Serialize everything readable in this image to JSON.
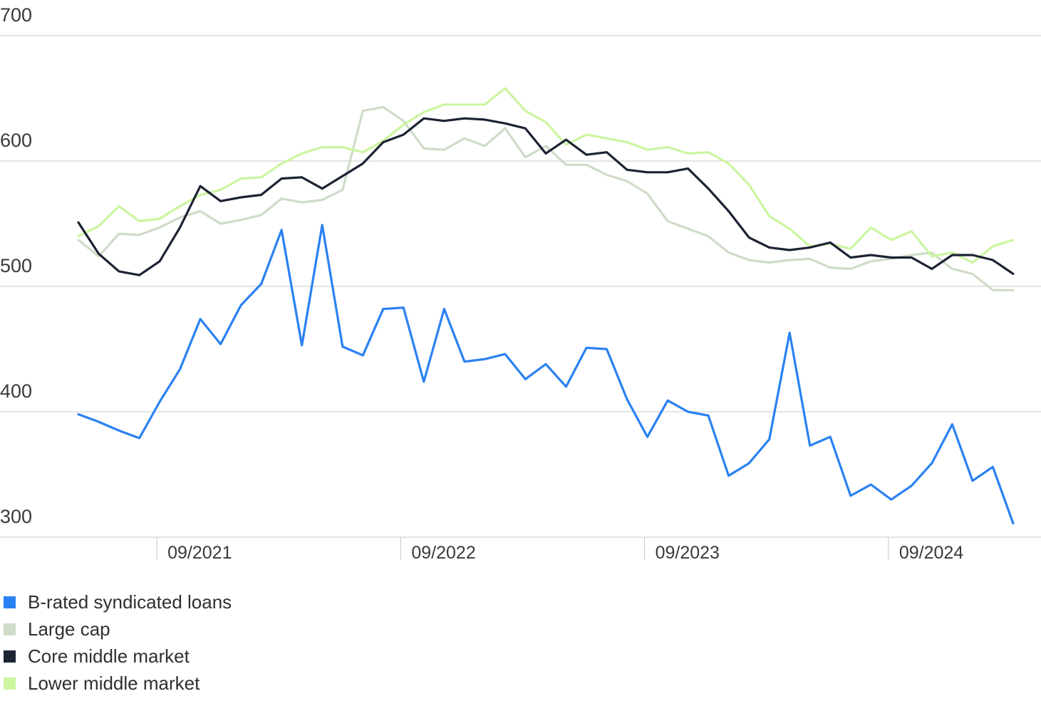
{
  "chart_data": {
    "type": "line",
    "title": "",
    "xlabel": "",
    "ylabel": "",
    "ylim": [
      300,
      700
    ],
    "yticks": [
      700,
      600,
      500,
      400,
      300
    ],
    "x_tick_labels": [
      "09/2021",
      "09/2022",
      "09/2023",
      "09/2024"
    ],
    "x_tick_positions": [
      6,
      18,
      30,
      42
    ],
    "grid": true,
    "legend_position": "bottom-left",
    "series": [
      {
        "name": "B-rated syndicated loans",
        "color": "#2a81f2",
        "values": [
          398,
          392,
          385,
          379,
          408,
          434,
          474,
          454,
          485,
          502,
          545,
          453,
          549,
          452,
          445,
          482,
          483,
          424,
          482,
          440,
          442,
          446,
          426,
          438,
          420,
          451,
          450,
          410,
          380,
          409,
          400,
          397,
          349,
          359,
          378,
          463,
          373,
          380,
          333,
          342,
          330,
          341,
          359,
          390,
          345,
          356,
          311
        ]
      },
      {
        "name": "Large cap",
        "color": "#cfdcc8",
        "values": [
          537,
          524,
          542,
          541,
          547,
          555,
          560,
          550,
          553,
          557,
          570,
          567,
          569,
          577,
          640,
          643,
          632,
          610,
          609,
          618,
          612,
          626,
          603,
          612,
          597,
          597,
          589,
          584,
          574,
          552,
          546,
          540,
          527,
          521,
          519,
          521,
          522,
          515,
          514,
          520,
          522,
          525,
          527,
          514,
          510,
          497,
          497
        ]
      },
      {
        "name": "Core middle market",
        "color": "#1c2333",
        "values": [
          551,
          526,
          512,
          509,
          520,
          547,
          580,
          568,
          571,
          573,
          586,
          587,
          578,
          588,
          598,
          615,
          621,
          634,
          632,
          634,
          633,
          630,
          626,
          606,
          617,
          605,
          607,
          593,
          591,
          591,
          594,
          578,
          560,
          539,
          531,
          529,
          531,
          535,
          523,
          525,
          523,
          523,
          514,
          525,
          525,
          521,
          510
        ]
      },
      {
        "name": "Lower middle market",
        "color": "#ccf5a0",
        "values": [
          540,
          548,
          564,
          552,
          554,
          564,
          573,
          577,
          586,
          587,
          598,
          606,
          611,
          611,
          607,
          616,
          629,
          639,
          645,
          645,
          645,
          658,
          640,
          631,
          613,
          621,
          618,
          615,
          609,
          611,
          606,
          607,
          598,
          581,
          556,
          546,
          532,
          534,
          530,
          547,
          537,
          544,
          524,
          527,
          519,
          532,
          537
        ]
      }
    ]
  }
}
